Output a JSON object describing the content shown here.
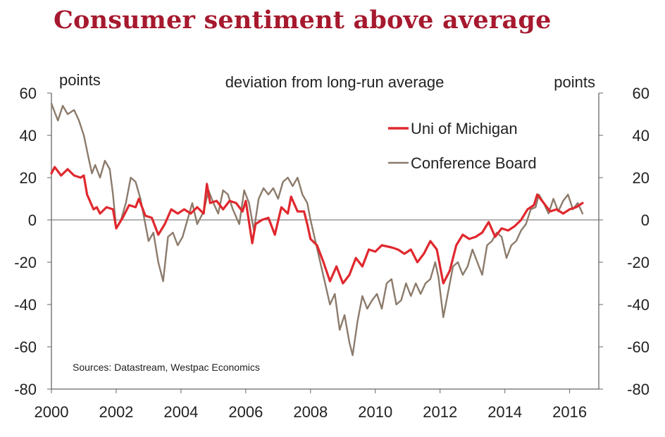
{
  "title": "Consumer sentiment above average",
  "chart_data": {
    "type": "line",
    "title": "Consumer sentiment above average",
    "subtitle": "deviation from long-run average",
    "ylabel_left": "points",
    "ylabel_right": "points",
    "xlabel": "",
    "ylim": [
      -80,
      60
    ],
    "yticks": [
      60,
      40,
      20,
      0,
      -20,
      -40,
      -60,
      -80
    ],
    "ytick_labels": [
      "60",
      "40",
      "20",
      "0",
      "-20",
      "-40",
      "-60",
      "-80"
    ],
    "xlim": [
      2000,
      2016.9
    ],
    "xticks": [
      2000,
      2002,
      2004,
      2006,
      2008,
      2010,
      2012,
      2014,
      2016
    ],
    "xtick_labels": [
      "2000",
      "2002",
      "2004",
      "2006",
      "2008",
      "2010",
      "2012",
      "2014",
      "2016"
    ],
    "zero_line": true,
    "legend": {
      "location": "top-right",
      "entries": [
        "Uni of Michigan",
        "Conference Board"
      ]
    },
    "annotation": "Sources: Datastream, Westpac Economics",
    "series": [
      {
        "name": "Uni of Michigan",
        "color": "#e0282e",
        "points": [
          [
            2000.0,
            22
          ],
          [
            2000.1,
            25
          ],
          [
            2000.3,
            21
          ],
          [
            2000.5,
            24
          ],
          [
            2000.7,
            21
          ],
          [
            2000.9,
            20
          ],
          [
            2001.0,
            21
          ],
          [
            2001.1,
            12
          ],
          [
            2001.3,
            5
          ],
          [
            2001.4,
            6
          ],
          [
            2001.5,
            3
          ],
          [
            2001.7,
            6
          ],
          [
            2001.9,
            5
          ],
          [
            2002.0,
            -4
          ],
          [
            2002.2,
            1
          ],
          [
            2002.4,
            7
          ],
          [
            2002.6,
            6
          ],
          [
            2002.7,
            10
          ],
          [
            2002.9,
            2
          ],
          [
            2003.1,
            1
          ],
          [
            2003.3,
            -7
          ],
          [
            2003.5,
            -2
          ],
          [
            2003.7,
            5
          ],
          [
            2003.9,
            3
          ],
          [
            2004.1,
            5
          ],
          [
            2004.3,
            3
          ],
          [
            2004.5,
            6
          ],
          [
            2004.7,
            3
          ],
          [
            2004.8,
            17
          ],
          [
            2004.9,
            8
          ],
          [
            2005.1,
            9
          ],
          [
            2005.3,
            5
          ],
          [
            2005.5,
            9
          ],
          [
            2005.7,
            8
          ],
          [
            2005.9,
            4
          ],
          [
            2006.0,
            9
          ],
          [
            2006.2,
            -11
          ],
          [
            2006.3,
            -2
          ],
          [
            2006.5,
            0
          ],
          [
            2006.7,
            1
          ],
          [
            2006.9,
            -7
          ],
          [
            2007.1,
            6
          ],
          [
            2007.3,
            3
          ],
          [
            2007.4,
            11
          ],
          [
            2007.6,
            4
          ],
          [
            2007.8,
            4
          ],
          [
            2007.9,
            -2
          ],
          [
            2008.0,
            -9
          ],
          [
            2008.2,
            -12
          ],
          [
            2008.4,
            -20
          ],
          [
            2008.6,
            -29
          ],
          [
            2008.8,
            -22
          ],
          [
            2009.0,
            -30
          ],
          [
            2009.2,
            -26
          ],
          [
            2009.4,
            -18
          ],
          [
            2009.6,
            -22
          ],
          [
            2009.8,
            -14
          ],
          [
            2010.0,
            -15
          ],
          [
            2010.2,
            -12
          ],
          [
            2010.5,
            -13
          ],
          [
            2010.7,
            -14
          ],
          [
            2010.9,
            -16
          ],
          [
            2011.1,
            -14
          ],
          [
            2011.3,
            -20
          ],
          [
            2011.5,
            -16
          ],
          [
            2011.7,
            -10
          ],
          [
            2011.9,
            -14
          ],
          [
            2012.1,
            -30
          ],
          [
            2012.3,
            -24
          ],
          [
            2012.5,
            -12
          ],
          [
            2012.7,
            -7
          ],
          [
            2012.9,
            -9
          ],
          [
            2013.1,
            -8
          ],
          [
            2013.3,
            -6
          ],
          [
            2013.5,
            -1
          ],
          [
            2013.7,
            -8
          ],
          [
            2013.9,
            -4
          ],
          [
            2014.1,
            -5
          ],
          [
            2014.3,
            -3
          ],
          [
            2014.5,
            0
          ],
          [
            2014.7,
            5
          ],
          [
            2014.9,
            7
          ],
          [
            2015.0,
            12
          ],
          [
            2015.2,
            8
          ],
          [
            2015.4,
            4
          ],
          [
            2015.6,
            5
          ],
          [
            2015.8,
            3
          ],
          [
            2016.0,
            5
          ],
          [
            2016.2,
            6
          ],
          [
            2016.4,
            8
          ]
        ]
      },
      {
        "name": "Conference Board",
        "color": "#8c7b6b",
        "points": [
          [
            2000.0,
            55
          ],
          [
            2000.2,
            47
          ],
          [
            2000.35,
            54
          ],
          [
            2000.5,
            50
          ],
          [
            2000.7,
            52
          ],
          [
            2000.85,
            47
          ],
          [
            2001.0,
            40
          ],
          [
            2001.15,
            29
          ],
          [
            2001.25,
            22
          ],
          [
            2001.35,
            26
          ],
          [
            2001.5,
            20
          ],
          [
            2001.65,
            28
          ],
          [
            2001.8,
            24
          ],
          [
            2001.9,
            12
          ],
          [
            2002.0,
            -4
          ],
          [
            2002.15,
            0
          ],
          [
            2002.3,
            8
          ],
          [
            2002.45,
            20
          ],
          [
            2002.6,
            18
          ],
          [
            2002.75,
            10
          ],
          [
            2002.85,
            2
          ],
          [
            2003.0,
            -10
          ],
          [
            2003.15,
            -6
          ],
          [
            2003.3,
            -20
          ],
          [
            2003.45,
            -29
          ],
          [
            2003.6,
            -8
          ],
          [
            2003.75,
            -6
          ],
          [
            2003.9,
            -12
          ],
          [
            2004.05,
            -8
          ],
          [
            2004.2,
            0
          ],
          [
            2004.35,
            8
          ],
          [
            2004.5,
            -2
          ],
          [
            2004.7,
            4
          ],
          [
            2004.85,
            14
          ],
          [
            2005.0,
            8
          ],
          [
            2005.15,
            3
          ],
          [
            2005.3,
            14
          ],
          [
            2005.45,
            12
          ],
          [
            2005.6,
            5
          ],
          [
            2005.8,
            -2
          ],
          [
            2005.95,
            14
          ],
          [
            2006.1,
            8
          ],
          [
            2006.25,
            -5
          ],
          [
            2006.4,
            10
          ],
          [
            2006.55,
            15
          ],
          [
            2006.7,
            12
          ],
          [
            2006.85,
            15
          ],
          [
            2007.0,
            10
          ],
          [
            2007.15,
            18
          ],
          [
            2007.3,
            20
          ],
          [
            2007.45,
            16
          ],
          [
            2007.6,
            20
          ],
          [
            2007.75,
            12
          ],
          [
            2007.9,
            8
          ],
          [
            2008.0,
            0
          ],
          [
            2008.15,
            -10
          ],
          [
            2008.3,
            -20
          ],
          [
            2008.45,
            -30
          ],
          [
            2008.6,
            -40
          ],
          [
            2008.75,
            -35
          ],
          [
            2008.9,
            -52
          ],
          [
            2009.05,
            -45
          ],
          [
            2009.2,
            -58
          ],
          [
            2009.3,
            -64
          ],
          [
            2009.45,
            -48
          ],
          [
            2009.6,
            -36
          ],
          [
            2009.75,
            -42
          ],
          [
            2009.9,
            -38
          ],
          [
            2010.05,
            -35
          ],
          [
            2010.2,
            -42
          ],
          [
            2010.35,
            -30
          ],
          [
            2010.5,
            -28
          ],
          [
            2010.65,
            -40
          ],
          [
            2010.8,
            -38
          ],
          [
            2010.95,
            -30
          ],
          [
            2011.1,
            -36
          ],
          [
            2011.25,
            -30
          ],
          [
            2011.4,
            -35
          ],
          [
            2011.55,
            -30
          ],
          [
            2011.7,
            -28
          ],
          [
            2011.85,
            -20
          ],
          [
            2011.95,
            -27
          ],
          [
            2012.1,
            -46
          ],
          [
            2012.25,
            -34
          ],
          [
            2012.4,
            -22
          ],
          [
            2012.55,
            -20
          ],
          [
            2012.7,
            -26
          ],
          [
            2012.85,
            -22
          ],
          [
            2013.0,
            -14
          ],
          [
            2013.15,
            -20
          ],
          [
            2013.3,
            -26
          ],
          [
            2013.45,
            -12
          ],
          [
            2013.6,
            -10
          ],
          [
            2013.75,
            -6
          ],
          [
            2013.9,
            -8
          ],
          [
            2014.05,
            -18
          ],
          [
            2014.2,
            -12
          ],
          [
            2014.35,
            -10
          ],
          [
            2014.5,
            -5
          ],
          [
            2014.65,
            -2
          ],
          [
            2014.8,
            5
          ],
          [
            2014.95,
            6
          ],
          [
            2015.05,
            12
          ],
          [
            2015.2,
            8
          ],
          [
            2015.35,
            3
          ],
          [
            2015.5,
            10
          ],
          [
            2015.65,
            4
          ],
          [
            2015.8,
            9
          ],
          [
            2015.95,
            12
          ],
          [
            2016.1,
            5
          ],
          [
            2016.25,
            8
          ],
          [
            2016.4,
            3
          ]
        ]
      }
    ]
  }
}
